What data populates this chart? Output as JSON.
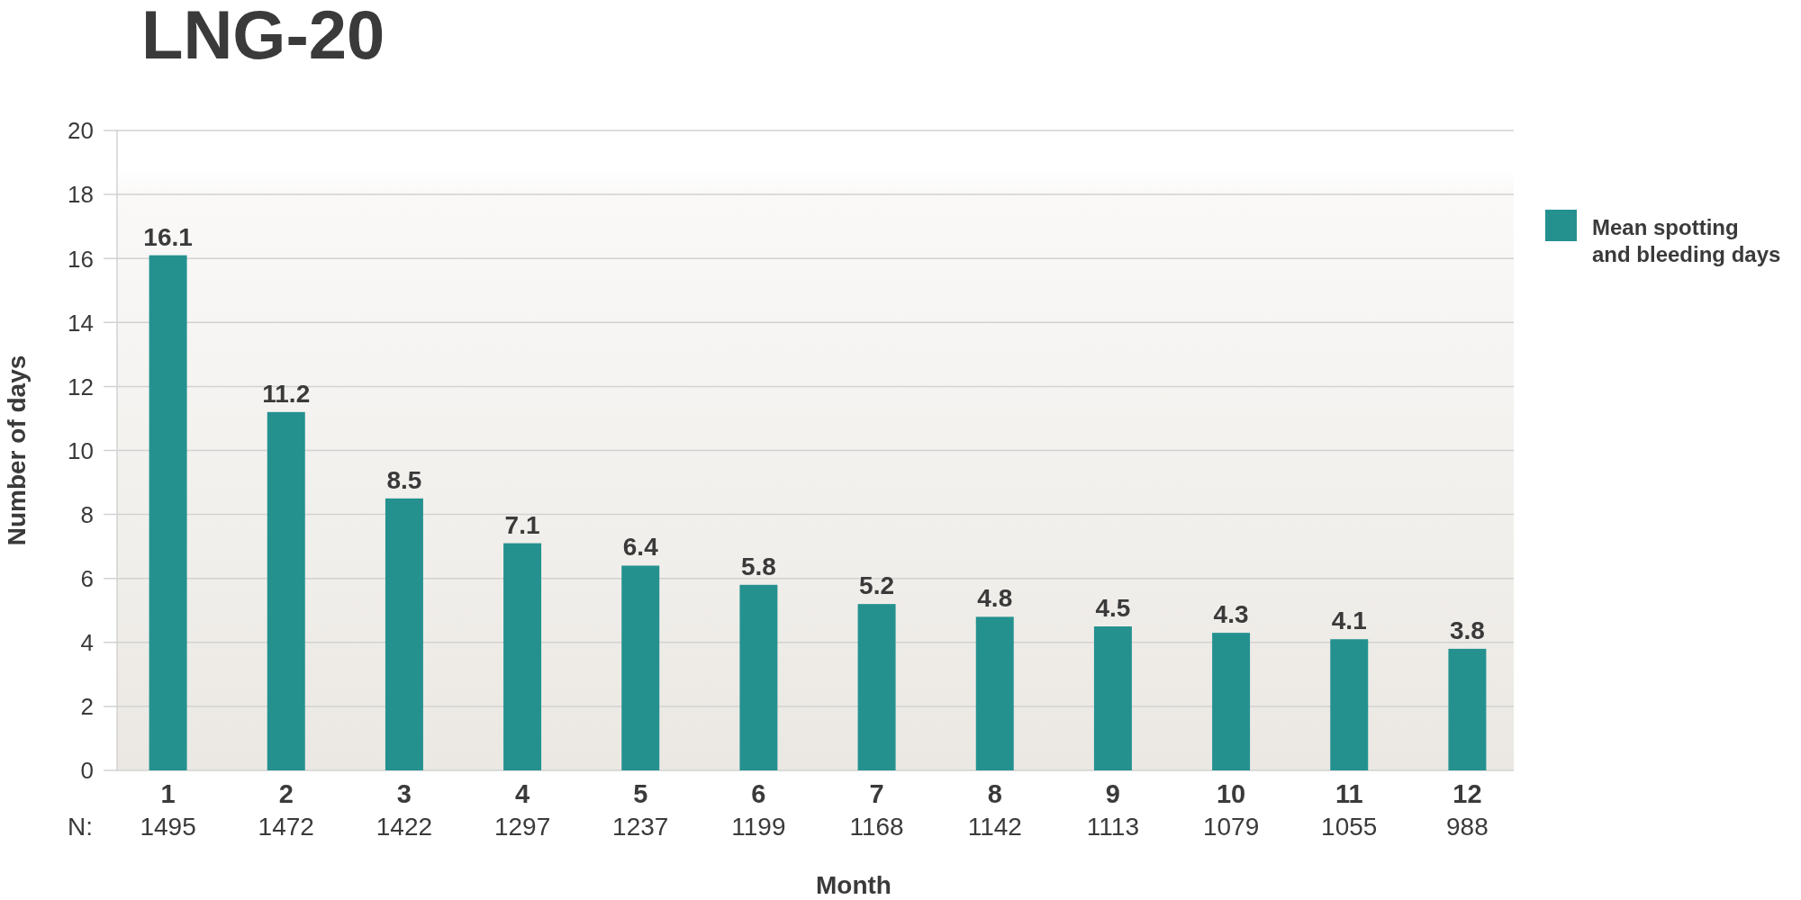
{
  "chart_data": {
    "type": "bar",
    "title": "LNG-20",
    "xlabel": "Month",
    "ylabel": "Number of days",
    "categories": [
      "1",
      "2",
      "3",
      "4",
      "5",
      "6",
      "7",
      "8",
      "9",
      "10",
      "11",
      "12"
    ],
    "series": [
      {
        "name": "Mean spotting and bleeding days",
        "color": "#24918f",
        "values": [
          16.1,
          11.2,
          8.5,
          7.1,
          6.4,
          5.8,
          5.2,
          4.8,
          4.5,
          4.3,
          4.1,
          3.8
        ]
      }
    ],
    "ylim": [
      0,
      20
    ],
    "yticks": [
      0,
      2,
      4,
      6,
      8,
      10,
      12,
      14,
      16,
      18,
      20
    ],
    "grid": "y",
    "legend": "right",
    "data_labels": true,
    "annotations": [
      "N:",
      "1495",
      "1472",
      "1422",
      "1297",
      "1237",
      "1199",
      "1168",
      "1142",
      "1113",
      "1079",
      "1055",
      "988"
    ]
  }
}
